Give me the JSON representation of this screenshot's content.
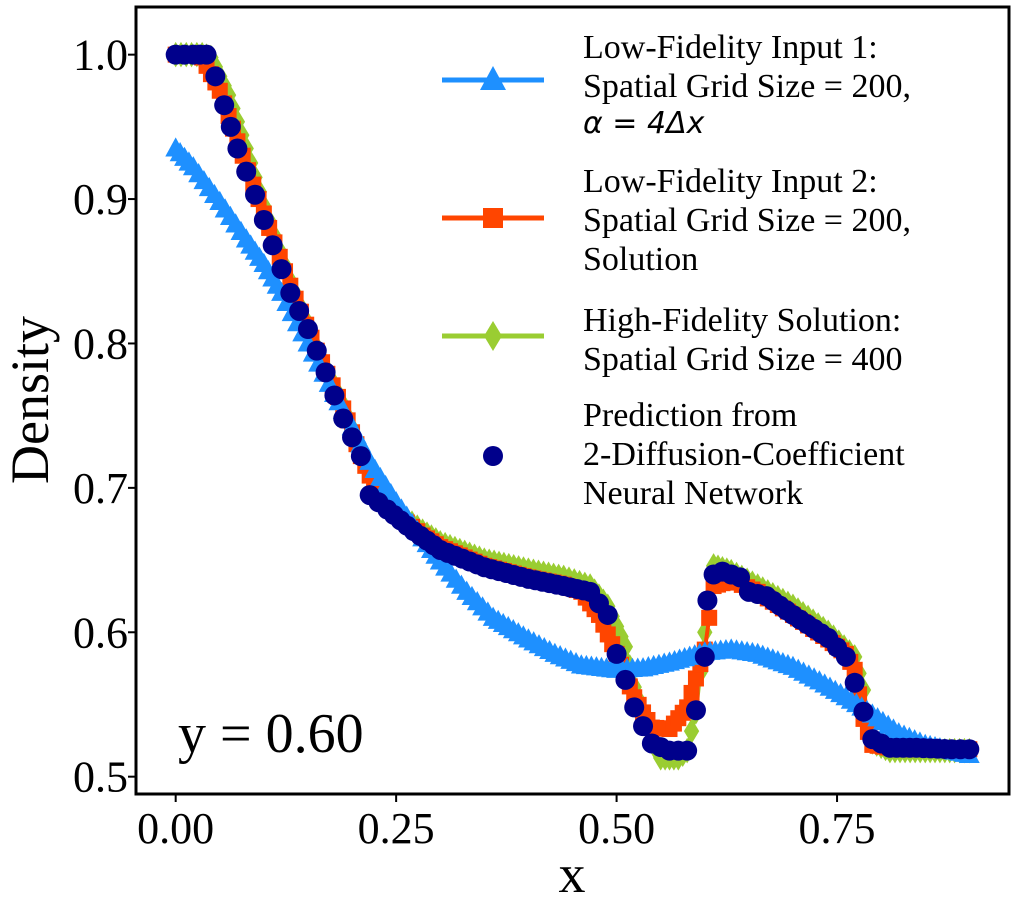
{
  "chart_data": {
    "type": "line",
    "xlabel": "x",
    "ylabel": "Density",
    "xlim": [
      -0.045,
      0.945
    ],
    "ylim": [
      0.488,
      1.033
    ],
    "xticks": [
      0.0,
      0.25,
      0.5,
      0.75
    ],
    "xtick_labels": [
      "0.00",
      "0.25",
      "0.50",
      "0.75"
    ],
    "yticks": [
      0.5,
      0.6,
      0.7,
      0.8,
      0.9,
      1.0
    ],
    "ytick_labels": [
      "0.5",
      "0.6",
      "0.7",
      "0.8",
      "0.9",
      "1.0"
    ],
    "grid": false,
    "legend_position": "top-right",
    "annotation": "y = 0.60",
    "series": [
      {
        "name_lines": [
          "Low-Fidelity Input 1:",
          "Spatial Grid Size = 200,"
        ],
        "name_math": "α = 4Δx",
        "color": "#1E90FF",
        "marker": "triangle",
        "points": [
          [
            0.0,
            0.935
          ],
          [
            0.02,
            0.922
          ],
          [
            0.05,
            0.898
          ],
          [
            0.08,
            0.872
          ],
          [
            0.1,
            0.855
          ],
          [
            0.12,
            0.835
          ],
          [
            0.15,
            0.8
          ],
          [
            0.18,
            0.765
          ],
          [
            0.2,
            0.742
          ],
          [
            0.22,
            0.718
          ],
          [
            0.25,
            0.69
          ],
          [
            0.28,
            0.665
          ],
          [
            0.3,
            0.649
          ],
          [
            0.33,
            0.628
          ],
          [
            0.36,
            0.61
          ],
          [
            0.4,
            0.595
          ],
          [
            0.43,
            0.585
          ],
          [
            0.46,
            0.577
          ],
          [
            0.5,
            0.574
          ],
          [
            0.53,
            0.575
          ],
          [
            0.56,
            0.579
          ],
          [
            0.6,
            0.586
          ],
          [
            0.63,
            0.588
          ],
          [
            0.66,
            0.585
          ],
          [
            0.7,
            0.576
          ],
          [
            0.73,
            0.566
          ],
          [
            0.76,
            0.555
          ],
          [
            0.79,
            0.543
          ],
          [
            0.82,
            0.53
          ],
          [
            0.85,
            0.522
          ],
          [
            0.9,
            0.515
          ]
        ]
      },
      {
        "name_lines": [
          "Low-Fidelity Input 2:",
          "Spatial Grid Size = 200,",
          "Solution"
        ],
        "color": "#FF4500",
        "marker": "square",
        "points": [
          [
            0.0,
            1.0
          ],
          [
            0.02,
            1.0
          ],
          [
            0.03,
            0.998
          ],
          [
            0.05,
            0.975
          ],
          [
            0.07,
            0.94
          ],
          [
            0.1,
            0.89
          ],
          [
            0.13,
            0.84
          ],
          [
            0.16,
            0.795
          ],
          [
            0.19,
            0.755
          ],
          [
            0.21,
            0.722
          ],
          [
            0.23,
            0.695
          ],
          [
            0.25,
            0.682
          ],
          [
            0.28,
            0.667
          ],
          [
            0.3,
            0.659
          ],
          [
            0.35,
            0.646
          ],
          [
            0.4,
            0.638
          ],
          [
            0.44,
            0.633
          ],
          [
            0.46,
            0.628
          ],
          [
            0.48,
            0.612
          ],
          [
            0.5,
            0.585
          ],
          [
            0.52,
            0.555
          ],
          [
            0.54,
            0.534
          ],
          [
            0.56,
            0.533
          ],
          [
            0.58,
            0.548
          ],
          [
            0.6,
            0.588
          ],
          [
            0.61,
            0.632
          ],
          [
            0.63,
            0.636
          ],
          [
            0.66,
            0.628
          ],
          [
            0.7,
            0.612
          ],
          [
            0.74,
            0.595
          ],
          [
            0.76,
            0.585
          ],
          [
            0.77,
            0.574
          ],
          [
            0.78,
            0.54
          ],
          [
            0.79,
            0.522
          ],
          [
            0.82,
            0.519
          ],
          [
            0.86,
            0.519
          ],
          [
            0.9,
            0.519
          ]
        ]
      },
      {
        "name_lines": [
          "High-Fidelity Solution:",
          "Spatial Grid Size = 400"
        ],
        "color": "#9ACD32",
        "marker": "diamond",
        "points": [
          [
            0.0,
            1.0
          ],
          [
            0.03,
            1.0
          ],
          [
            0.04,
            0.998
          ],
          [
            0.06,
            0.972
          ],
          [
            0.08,
            0.935
          ],
          [
            0.1,
            0.895
          ],
          [
            0.13,
            0.843
          ],
          [
            0.16,
            0.797
          ],
          [
            0.19,
            0.757
          ],
          [
            0.21,
            0.725
          ],
          [
            0.23,
            0.697
          ],
          [
            0.25,
            0.684
          ],
          [
            0.28,
            0.67
          ],
          [
            0.3,
            0.662
          ],
          [
            0.35,
            0.65
          ],
          [
            0.4,
            0.643
          ],
          [
            0.44,
            0.638
          ],
          [
            0.47,
            0.632
          ],
          [
            0.49,
            0.618
          ],
          [
            0.51,
            0.59
          ],
          [
            0.52,
            0.562
          ],
          [
            0.54,
            0.525
          ],
          [
            0.55,
            0.513
          ],
          [
            0.57,
            0.513
          ],
          [
            0.58,
            0.518
          ],
          [
            0.59,
            0.545
          ],
          [
            0.6,
            0.6
          ],
          [
            0.61,
            0.646
          ],
          [
            0.63,
            0.642
          ],
          [
            0.66,
            0.632
          ],
          [
            0.7,
            0.618
          ],
          [
            0.74,
            0.6
          ],
          [
            0.77,
            0.583
          ],
          [
            0.78,
            0.56
          ],
          [
            0.79,
            0.524
          ],
          [
            0.81,
            0.518
          ],
          [
            0.85,
            0.518
          ],
          [
            0.9,
            0.518
          ]
        ]
      },
      {
        "name_lines": [
          "Prediction from",
          "2-Diffusion-Coefficient",
          "Neural Network"
        ],
        "color": "#00008B",
        "marker": "circle",
        "points": [
          [
            0.0,
            1.0
          ],
          [
            0.02,
            1.0
          ],
          [
            0.035,
            1.0
          ],
          [
            0.045,
            0.985
          ],
          [
            0.055,
            0.965
          ],
          [
            0.07,
            0.935
          ],
          [
            0.09,
            0.903
          ],
          [
            0.11,
            0.868
          ],
          [
            0.13,
            0.835
          ],
          [
            0.15,
            0.81
          ],
          [
            0.17,
            0.78
          ],
          [
            0.19,
            0.748
          ],
          [
            0.21,
            0.722
          ],
          [
            0.22,
            0.695
          ],
          [
            0.24,
            0.685
          ],
          [
            0.27,
            0.67
          ],
          [
            0.3,
            0.657
          ],
          [
            0.35,
            0.645
          ],
          [
            0.4,
            0.637
          ],
          [
            0.44,
            0.632
          ],
          [
            0.47,
            0.628
          ],
          [
            0.49,
            0.612
          ],
          [
            0.5,
            0.585
          ],
          [
            0.51,
            0.567
          ],
          [
            0.52,
            0.548
          ],
          [
            0.53,
            0.535
          ],
          [
            0.54,
            0.523
          ],
          [
            0.56,
            0.518
          ],
          [
            0.58,
            0.518
          ],
          [
            0.59,
            0.546
          ],
          [
            0.6,
            0.583
          ],
          [
            0.603,
            0.622
          ],
          [
            0.61,
            0.64
          ],
          [
            0.62,
            0.642
          ],
          [
            0.64,
            0.638
          ],
          [
            0.65,
            0.628
          ],
          [
            0.67,
            0.625
          ],
          [
            0.7,
            0.612
          ],
          [
            0.74,
            0.596
          ],
          [
            0.76,
            0.583
          ],
          [
            0.77,
            0.565
          ],
          [
            0.78,
            0.545
          ],
          [
            0.79,
            0.526
          ],
          [
            0.81,
            0.52
          ],
          [
            0.84,
            0.52
          ],
          [
            0.88,
            0.519
          ],
          [
            0.9,
            0.519
          ]
        ]
      }
    ]
  }
}
